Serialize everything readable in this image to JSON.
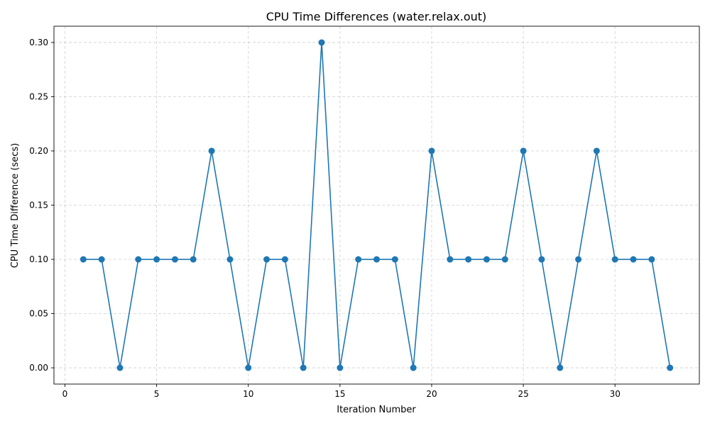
{
  "chart_data": {
    "type": "line",
    "title": "CPU Time Differences (water.relax.out)",
    "xlabel": "Iteration Number",
    "ylabel": "CPU Time Difference (secs)",
    "xlim": [
      -0.6,
      34.6
    ],
    "ylim": [
      -0.015,
      0.315
    ],
    "xticks": [
      0,
      5,
      10,
      15,
      20,
      25,
      30
    ],
    "yticks": [
      0.0,
      0.05,
      0.1,
      0.15,
      0.2,
      0.25,
      0.3
    ],
    "xtick_labels": [
      "0",
      "5",
      "10",
      "15",
      "20",
      "25",
      "30"
    ],
    "ytick_labels": [
      "0.00",
      "0.05",
      "0.10",
      "0.15",
      "0.20",
      "0.25",
      "0.30"
    ],
    "grid": true,
    "series": [
      {
        "color": "#1f77b4",
        "marker": "circle",
        "x": [
          1,
          2,
          3,
          4,
          5,
          6,
          7,
          8,
          9,
          10,
          11,
          12,
          13,
          14,
          15,
          16,
          17,
          18,
          19,
          20,
          21,
          22,
          23,
          24,
          25,
          26,
          27,
          28,
          29,
          30,
          31,
          32,
          33
        ],
        "y": [
          0.1,
          0.1,
          0.0,
          0.1,
          0.1,
          0.1,
          0.1,
          0.2,
          0.1,
          0.0,
          0.1,
          0.1,
          0.0,
          0.3,
          0.0,
          0.1,
          0.1,
          0.1,
          0.0,
          0.2,
          0.1,
          0.1,
          0.1,
          0.1,
          0.2,
          0.1,
          0.0,
          0.1,
          0.2,
          0.1,
          0.1,
          0.1,
          0.0
        ]
      }
    ]
  }
}
